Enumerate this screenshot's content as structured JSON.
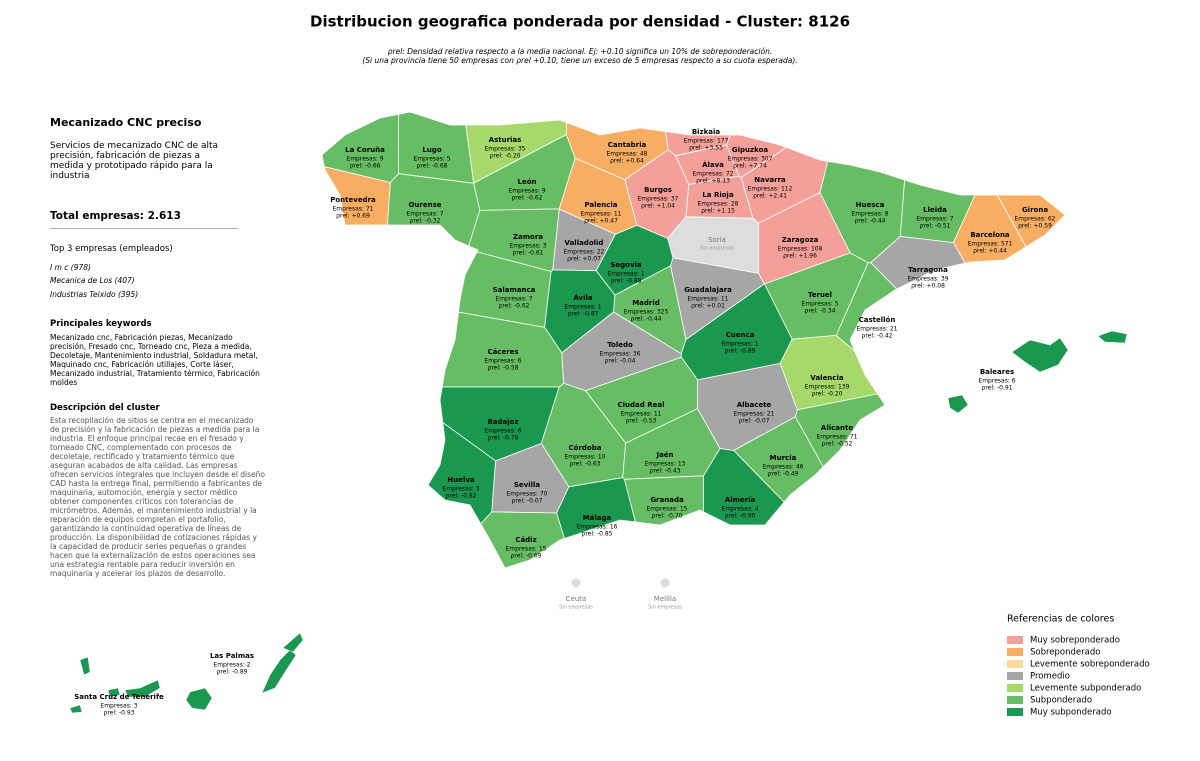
{
  "header": {
    "title": "Distribucion geografica ponderada por densidad - Cluster: 8126",
    "note": [
      "ρrel: Densidad relativa respecto a la media nacional. Ej: +0.10 significa un 10% de sobreponderación.",
      "(Si una provincia tiene 50 empresas con ρrel +0.10, tiene un exceso de 5 empresas respecto a su cuota esperada)."
    ]
  },
  "sidebar": {
    "cluster_name": "Mecanizado CNC preciso",
    "summary": "Servicios de mecanizado CNC de alta precisión, fabricación de piezas a medida y prototipado rápido para la industria",
    "total": "Total empresas: 2.613",
    "top_title": "Top 3 empresas (empleados)",
    "top_companies": [
      "I m c (978)",
      "Mecanica de Los (407)",
      "Industrias Teixido (395)"
    ],
    "keywords_title": "Principales keywords",
    "keywords": "Mecanizado cnc, Fabricación piezas, Mecanizado precisión, Fresado cnc, Torneado cnc, Pieza a medida, Decoletaje, Mantenimiento industrial, Soldadura metal, Maquinado cnc, Fabricación utillajes, Corte láser, Mecanizado industrial, Tratamiento térmico, Fabricación moldes",
    "description_title": "Descripción del cluster",
    "description": "Esta recopilación de sitios se centra en el mecanizado de precisión y la fabricación de piezas a medida para la industria. El enfoque principal recae en el fresado y torneado CNC, complementado con procesos de decoletaje, rectificado y tratamiento térmico que aseguran acabados de alta calidad. Las empresas ofrecen servicios integrales que incluyen desde el diseño CAD hasta la entrega final, permitiendo a fabricantes de maquinaria, automoción, energía y sector médico obtener componentes críticos con tolerancias de micrómetros. Además, el mantenimiento industrial y la reparación de equipos completan el portafolio, garantizando la continuidad operativa de líneas de producción. La disponibilidad de cotizaciones rápidas y la capacidad de producir series pequeñas o grandes hacen que la externalización de estos operaciones sea una estrategia rentable para reducir inversión en maquinaria y acelerar los plazos de desarrollo."
  },
  "legend": {
    "title": "Referencias de colores",
    "items": [
      {
        "label": "Muy sobreponderado",
        "color": "#f4a09a"
      },
      {
        "label": "Sobreponderado",
        "color": "#f7ae62"
      },
      {
        "label": "Levemente sobreponderado",
        "color": "#fdd9a0"
      },
      {
        "label": "Promedio",
        "color": "#a6a6a6"
      },
      {
        "label": "Levemente subponderado",
        "color": "#a6d96a"
      },
      {
        "label": "Subponderado",
        "color": "#66bd63"
      },
      {
        "label": "Muy subponderado",
        "color": "#1a9850"
      }
    ]
  },
  "no_data_color": "#dddddd",
  "provinces": [
    {
      "name": "La Coruña",
      "companies": "Empresas: 9",
      "rho": "ρrel: -0.66",
      "class": 5
    },
    {
      "name": "Lugo",
      "companies": "Empresas: 5",
      "rho": "ρrel: -0.68",
      "class": 5
    },
    {
      "name": "Asturias",
      "companies": "Empresas: 35",
      "rho": "ρrel: -0.20",
      "class": 4
    },
    {
      "name": "Cantabria",
      "companies": "Empresas: 48",
      "rho": "ρrel: +0.64",
      "class": 1
    },
    {
      "name": "Bizkaia",
      "companies": "Empresas: 177",
      "rho": "ρrel: +3.55",
      "class": 0
    },
    {
      "name": "Gipuzkoa",
      "companies": "Empresas: 307",
      "rho": "ρrel: +7.74",
      "class": 0
    },
    {
      "name": "Álava",
      "companies": "Empresas: 72",
      "rho": "ρrel: +8.13",
      "class": 0
    },
    {
      "name": "Navarra",
      "companies": "Empresas: 112",
      "rho": "ρrel: +2.41",
      "class": 0
    },
    {
      "name": "La Rioja",
      "companies": "Empresas: 28",
      "rho": "ρrel: +1.15",
      "class": 0
    },
    {
      "name": "Burgos",
      "companies": "Empresas: 37",
      "rho": "ρrel: +1.04",
      "class": 0
    },
    {
      "name": "Palencia",
      "companies": "Empresas: 11",
      "rho": "ρrel: +0.47",
      "class": 1
    },
    {
      "name": "León",
      "companies": "Empresas: 9",
      "rho": "ρrel: -0.62",
      "class": 5
    },
    {
      "name": "Pontevedra",
      "companies": "Empresas: 71",
      "rho": "ρrel: +0.69",
      "class": 1
    },
    {
      "name": "Ourense",
      "companies": "Empresas: 7",
      "rho": "ρrel: -0.32",
      "class": 5
    },
    {
      "name": "Zamora",
      "companies": "Empresas: 3",
      "rho": "ρrel: -0.61",
      "class": 5
    },
    {
      "name": "Valladolid",
      "companies": "Empresas: 22",
      "rho": "ρrel: +0.07",
      "class": 3
    },
    {
      "name": "Soria",
      "companies": "Sin empresas",
      "class": null
    },
    {
      "name": "Zaragoza",
      "companies": "Empresas: 108",
      "rho": "ρrel: +1.96",
      "class": 0
    },
    {
      "name": "Huesca",
      "companies": "Empresas: 8",
      "rho": "ρrel: -0.44",
      "class": 5
    },
    {
      "name": "Lleida",
      "companies": "Empresas: 7",
      "rho": "ρrel: -0.51",
      "class": 5
    },
    {
      "name": "Girona",
      "companies": "Empresas: 62",
      "rho": "ρrel: +0.59",
      "class": 1
    },
    {
      "name": "Barcelona",
      "companies": "Empresas: 571",
      "rho": "ρrel: +0.44",
      "class": 1
    },
    {
      "name": "Tarragona",
      "companies": "Empresas: 39",
      "rho": "ρrel: +0.08",
      "class": 3
    },
    {
      "name": "Segovia",
      "companies": "Empresas: 1",
      "rho": "ρrel: -0.88",
      "class": 6
    },
    {
      "name": "Salamanca",
      "companies": "Empresas: 7",
      "rho": "ρrel: -0.62",
      "class": 5
    },
    {
      "name": "Ávila",
      "companies": "Empresas: 1",
      "rho": "ρrel: -0.87",
      "class": 6
    },
    {
      "name": "Madrid",
      "companies": "Empresas: 325",
      "rho": "ρrel: -0.44",
      "class": 5
    },
    {
      "name": "Guadalajara",
      "companies": "Empresas: 11",
      "rho": "ρrel: +0.01",
      "class": 3
    },
    {
      "name": "Teruel",
      "companies": "Empresas: 5",
      "rho": "ρrel: -0.34",
      "class": 5
    },
    {
      "name": "Castellón",
      "companies": "Empresas: 21",
      "rho": "ρrel: -0.42",
      "class": 5
    },
    {
      "name": "Cáceres",
      "companies": "Empresas: 6",
      "rho": "ρrel: -0.58",
      "class": 5
    },
    {
      "name": "Toledo",
      "companies": "Empresas: 36",
      "rho": "ρrel: -0.04",
      "class": 3
    },
    {
      "name": "Cuenca",
      "companies": "Empresas: 1",
      "rho": "ρrel: -0.89",
      "class": 6
    },
    {
      "name": "Valencia",
      "companies": "Empresas: 139",
      "rho": "ρrel: -0.20",
      "class": 4
    },
    {
      "name": "Badajoz",
      "companies": "Empresas: 6",
      "rho": "ρrel: -0.78",
      "class": 6
    },
    {
      "name": "Ciudad Real",
      "companies": "Empresas: 11",
      "rho": "ρrel: -0.53",
      "class": 5
    },
    {
      "name": "Albacete",
      "companies": "Empresas: 21",
      "rho": "ρrel: -0.07",
      "class": 3
    },
    {
      "name": "Alicante",
      "companies": "Empresas: 71",
      "rho": "ρrel: -0.52",
      "class": 5
    },
    {
      "name": "Córdoba",
      "companies": "Empresas: 10",
      "rho": "ρrel: -0.63",
      "class": 5
    },
    {
      "name": "Jaén",
      "companies": "Empresas: 13",
      "rho": "ρrel: -0.43",
      "class": 5
    },
    {
      "name": "Murcia",
      "companies": "Empresas: 46",
      "rho": "ρrel: -0.49",
      "class": 5
    },
    {
      "name": "Huelva",
      "companies": "Empresas: 3",
      "rho": "ρrel: -0.82",
      "class": 6
    },
    {
      "name": "Sevilla",
      "companies": "Empresas: 70",
      "rho": "ρrel: -0.07",
      "class": 3
    },
    {
      "name": "Granada",
      "companies": "Empresas: 15",
      "rho": "ρrel: -0.70",
      "class": 5
    },
    {
      "name": "Almería",
      "companies": "Empresas: 4",
      "rho": "ρrel: -0.90",
      "class": 6
    },
    {
      "name": "Málaga",
      "companies": "Empresas: 16",
      "rho": "ρrel: -0.85",
      "class": 6
    },
    {
      "name": "Cádiz",
      "companies": "Empresas: 15",
      "rho": "ρrel: -0.69",
      "class": 5
    },
    {
      "name": "Baleares",
      "companies": "Empresas: 6",
      "rho": "ρrel: -0.91",
      "class": 6
    },
    {
      "name": "Las Palmas",
      "companies": "Empresas: 2",
      "rho": "ρrel: -0.89",
      "class": 6
    },
    {
      "name": "Santa Cruz de Tenerife",
      "companies": "Empresas: 3",
      "rho": "ρrel: -0.93",
      "class": 6
    },
    {
      "name": "Ceuta",
      "companies": "Sin empresas",
      "class": null
    },
    {
      "name": "Melilla",
      "companies": "Sin empresas",
      "class": null
    }
  ]
}
